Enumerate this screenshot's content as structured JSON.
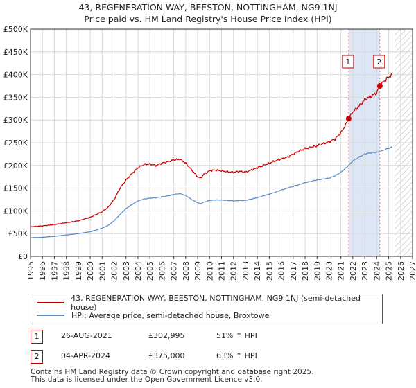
{
  "title_line1": "43, REGENERATION WAY, BEESTON, NOTTINGHAM, NG9 1NJ",
  "title_line2": "Price paid vs. HM Land Registry's House Price Index (HPI)",
  "chart_data": {
    "type": "line",
    "xlim": [
      1995,
      2027
    ],
    "ylim": [
      0,
      500000
    ],
    "y_ticks": [
      {
        "value": 0,
        "label": "£0"
      },
      {
        "value": 50000,
        "label": "£50K"
      },
      {
        "value": 100000,
        "label": "£100K"
      },
      {
        "value": 150000,
        "label": "£150K"
      },
      {
        "value": 200000,
        "label": "£200K"
      },
      {
        "value": 250000,
        "label": "£250K"
      },
      {
        "value": 300000,
        "label": "£300K"
      },
      {
        "value": 350000,
        "label": "£350K"
      },
      {
        "value": 400000,
        "label": "£400K"
      },
      {
        "value": 450000,
        "label": "£450K"
      },
      {
        "value": 500000,
        "label": "£500K"
      }
    ],
    "x_ticks": [
      "1995",
      "1996",
      "1997",
      "1998",
      "1999",
      "2000",
      "2001",
      "2002",
      "2003",
      "2004",
      "2005",
      "2006",
      "2007",
      "2008",
      "2009",
      "2010",
      "2011",
      "2012",
      "2013",
      "2014",
      "2015",
      "2016",
      "2017",
      "2018",
      "2019",
      "2020",
      "2021",
      "2022",
      "2023",
      "2024",
      "2025",
      "2026",
      "2027"
    ],
    "grid": true,
    "shaded_period": [
      2021.65,
      2024.26
    ],
    "hatched_from": 2025.5,
    "series": [
      {
        "name": "43, REGENERATION WAY, BEESTON, NOTTINGHAM, NG9 1NJ (semi-detached house)",
        "color": "#cc0000",
        "x": [
          1995.0,
          1996.0,
          1997.0,
          1998.0,
          1999.0,
          2000.0,
          2000.5,
          2001.0,
          2001.5,
          2002.0,
          2002.5,
          2003.0,
          2003.5,
          2004.0,
          2004.5,
          2005.0,
          2005.5,
          2006.0,
          2006.5,
          2007.0,
          2007.5,
          2008.0,
          2008.5,
          2009.0,
          2009.25,
          2009.5,
          2010.0,
          2010.5,
          2011.0,
          2011.5,
          2012.0,
          2012.5,
          2013.0,
          2013.5,
          2014.0,
          2014.5,
          2015.0,
          2015.5,
          2016.0,
          2016.5,
          2017.0,
          2017.5,
          2018.0,
          2018.5,
          2019.0,
          2019.5,
          2020.0,
          2020.5,
          2021.0,
          2021.3,
          2021.65,
          2022.0,
          2022.5,
          2023.0,
          2023.5,
          2024.0,
          2024.26,
          2024.6,
          2025.0,
          2025.3
        ],
        "y": [
          65000,
          67000,
          70000,
          74000,
          78000,
          86000,
          92000,
          98000,
          108000,
          125000,
          150000,
          168000,
          182000,
          195000,
          202000,
          203000,
          200000,
          205000,
          208000,
          212000,
          214000,
          205000,
          190000,
          175000,
          172000,
          180000,
          188000,
          190000,
          188000,
          186000,
          185000,
          187000,
          185000,
          190000,
          195000,
          200000,
          205000,
          210000,
          214000,
          218000,
          225000,
          232000,
          237000,
          240000,
          243000,
          248000,
          252000,
          258000,
          272000,
          285000,
          302995,
          318000,
          330000,
          345000,
          352000,
          360000,
          375000,
          385000,
          395000,
          400000
        ]
      },
      {
        "name": "HPI: Average price, semi-detached house, Broxtowe",
        "color": "#5b8fc9",
        "x": [
          1995.0,
          1996.0,
          1997.0,
          1998.0,
          1999.0,
          2000.0,
          2000.5,
          2001.0,
          2001.5,
          2002.0,
          2002.5,
          2003.0,
          2003.5,
          2004.0,
          2004.5,
          2005.0,
          2005.5,
          2006.0,
          2006.5,
          2007.0,
          2007.5,
          2008.0,
          2008.5,
          2009.0,
          2009.25,
          2009.5,
          2010.0,
          2010.5,
          2011.0,
          2011.5,
          2012.0,
          2012.5,
          2013.0,
          2013.5,
          2014.0,
          2014.5,
          2015.0,
          2015.5,
          2016.0,
          2016.5,
          2017.0,
          2017.5,
          2018.0,
          2018.5,
          2019.0,
          2019.5,
          2020.0,
          2020.5,
          2021.0,
          2021.3,
          2021.65,
          2022.0,
          2022.5,
          2023.0,
          2023.5,
          2024.0,
          2024.26,
          2024.6,
          2025.0,
          2025.3
        ],
        "y": [
          41000,
          42000,
          44000,
          47000,
          50000,
          54000,
          58000,
          62000,
          68000,
          78000,
          92000,
          105000,
          114000,
          122000,
          126000,
          128000,
          129000,
          131000,
          133000,
          136000,
          138000,
          134000,
          125000,
          118000,
          116000,
          119000,
          123000,
          124000,
          124000,
          123000,
          122000,
          123000,
          123000,
          126000,
          129000,
          133000,
          137000,
          141000,
          146000,
          150000,
          154000,
          158000,
          162000,
          165000,
          168000,
          170000,
          172000,
          177000,
          185000,
          192000,
          200000,
          210000,
          218000,
          225000,
          228000,
          229000,
          230000,
          234000,
          238000,
          240000
        ]
      }
    ],
    "markers": [
      {
        "label": "1",
        "x": 2021.65,
        "y": 302995
      },
      {
        "label": "2",
        "x": 2024.26,
        "y": 375000
      }
    ]
  },
  "legend": {
    "series1": "43, REGENERATION WAY, BEESTON, NOTTINGHAM, NG9 1NJ (semi-detached house)",
    "series2": "HPI: Average price, semi-detached house, Broxtowe"
  },
  "transactions": [
    {
      "num": "1",
      "date": "26-AUG-2021",
      "price": "£302,995",
      "hpi": "51% ↑ HPI"
    },
    {
      "num": "2",
      "date": "04-APR-2024",
      "price": "£375,000",
      "hpi": "63% ↑ HPI"
    }
  ],
  "footer_line1": "Contains HM Land Registry data © Crown copyright and database right 2025.",
  "footer_line2": "This data is licensed under the Open Government Licence v3.0."
}
